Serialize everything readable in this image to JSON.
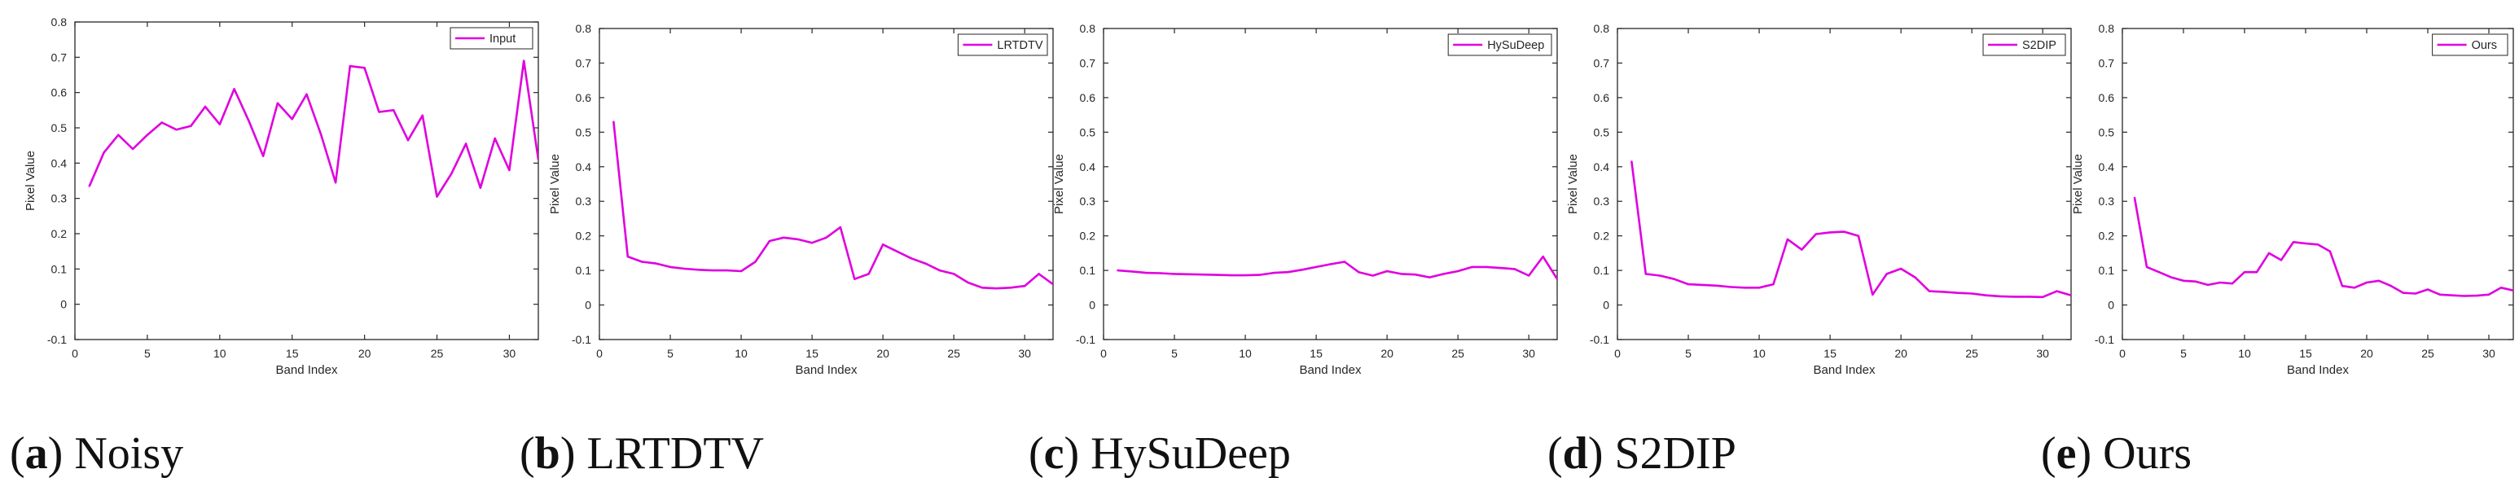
{
  "figure": {
    "captions": [
      {
        "letter": "(a)",
        "name": "Noisy"
      },
      {
        "letter": "(b)",
        "name": "LRTDTV"
      },
      {
        "letter": "(c)",
        "name": "HySuDeep"
      },
      {
        "letter": "(d)",
        "name": "S2DIP"
      },
      {
        "letter": "(e)",
        "name": "Ours"
      }
    ]
  },
  "chart_data": [
    {
      "type": "line",
      "xlabel": "Band Index",
      "ylabel": "Pixel Value",
      "xlim": [
        0,
        32
      ],
      "ylim": [
        -0.1,
        0.8
      ],
      "xticks": [
        0,
        5,
        10,
        15,
        20,
        25,
        30
      ],
      "yticks": [
        -0.1,
        0,
        0.1,
        0.2,
        0.3,
        0.4,
        0.5,
        0.6,
        0.7,
        0.8
      ],
      "legend_position": "top-right",
      "grid": false,
      "series": [
        {
          "name": "Input",
          "color": "#e000e0",
          "x": [
            1,
            2,
            3,
            4,
            5,
            6,
            7,
            8,
            9,
            10,
            11,
            12,
            13,
            14,
            15,
            16,
            17,
            18,
            19,
            20,
            21,
            22,
            23,
            24,
            25,
            26,
            27,
            28,
            29,
            30,
            31,
            32
          ],
          "values": [
            0.335,
            0.43,
            0.48,
            0.44,
            0.48,
            0.515,
            0.495,
            0.505,
            0.56,
            0.51,
            0.61,
            0.52,
            0.42,
            0.57,
            0.525,
            0.595,
            0.48,
            0.345,
            0.675,
            0.67,
            0.545,
            0.55,
            0.465,
            0.535,
            0.305,
            0.37,
            0.455,
            0.33,
            0.47,
            0.38,
            0.69,
            0.41
          ]
        }
      ]
    },
    {
      "type": "line",
      "xlabel": "Band Index",
      "ylabel": "Pixel Value",
      "xlim": [
        0,
        32
      ],
      "ylim": [
        -0.1,
        0.8
      ],
      "xticks": [
        0,
        5,
        10,
        15,
        20,
        25,
        30
      ],
      "yticks": [
        -0.1,
        0,
        0.1,
        0.2,
        0.3,
        0.4,
        0.5,
        0.6,
        0.7,
        0.8
      ],
      "legend_position": "top-right",
      "grid": false,
      "series": [
        {
          "name": "LRTDTV",
          "color": "#e000e0",
          "x": [
            1,
            2,
            3,
            4,
            5,
            6,
            7,
            8,
            9,
            10,
            11,
            12,
            13,
            14,
            15,
            16,
            17,
            18,
            19,
            20,
            21,
            22,
            23,
            24,
            25,
            26,
            27,
            28,
            29,
            30,
            31,
            32
          ],
          "values": [
            0.53,
            0.14,
            0.125,
            0.12,
            0.11,
            0.105,
            0.102,
            0.1,
            0.1,
            0.098,
            0.125,
            0.185,
            0.195,
            0.19,
            0.18,
            0.195,
            0.225,
            0.075,
            0.09,
            0.175,
            0.155,
            0.135,
            0.12,
            0.1,
            0.09,
            0.065,
            0.05,
            0.048,
            0.05,
            0.055,
            0.09,
            0.06
          ]
        }
      ]
    },
    {
      "type": "line",
      "xlabel": "Band Index",
      "ylabel": "Pixel Value",
      "xlim": [
        0,
        32
      ],
      "ylim": [
        -0.1,
        0.8
      ],
      "xticks": [
        0,
        5,
        10,
        15,
        20,
        25,
        30
      ],
      "yticks": [
        -0.1,
        0,
        0.1,
        0.2,
        0.3,
        0.4,
        0.5,
        0.6,
        0.7,
        0.8
      ],
      "legend_position": "top-right",
      "grid": false,
      "series": [
        {
          "name": "HySuDeep",
          "color": "#e000e0",
          "x": [
            1,
            2,
            3,
            4,
            5,
            6,
            7,
            8,
            9,
            10,
            11,
            12,
            13,
            14,
            15,
            16,
            17,
            18,
            19,
            20,
            21,
            22,
            23,
            24,
            25,
            26,
            27,
            28,
            29,
            30,
            31,
            32
          ],
          "values": [
            0.1,
            0.097,
            0.093,
            0.092,
            0.09,
            0.089,
            0.088,
            0.087,
            0.086,
            0.086,
            0.087,
            0.093,
            0.095,
            0.102,
            0.11,
            0.118,
            0.125,
            0.095,
            0.085,
            0.098,
            0.09,
            0.088,
            0.08,
            0.09,
            0.098,
            0.11,
            0.11,
            0.107,
            0.104,
            0.085,
            0.14,
            0.075
          ]
        }
      ]
    },
    {
      "type": "line",
      "xlabel": "Band Index",
      "ylabel": "Pixel Value",
      "xlim": [
        0,
        32
      ],
      "ylim": [
        -0.1,
        0.8
      ],
      "xticks": [
        0,
        5,
        10,
        15,
        20,
        25,
        30
      ],
      "yticks": [
        -0.1,
        0,
        0.1,
        0.2,
        0.3,
        0.4,
        0.5,
        0.6,
        0.7,
        0.8
      ],
      "legend_position": "top-right",
      "grid": false,
      "series": [
        {
          "name": "S2DIP",
          "color": "#e000e0",
          "x": [
            1,
            2,
            3,
            4,
            5,
            6,
            7,
            8,
            9,
            10,
            11,
            12,
            13,
            14,
            15,
            16,
            17,
            18,
            19,
            20,
            21,
            22,
            23,
            24,
            25,
            26,
            27,
            28,
            29,
            30,
            31,
            32
          ],
          "values": [
            0.415,
            0.09,
            0.085,
            0.075,
            0.06,
            0.058,
            0.056,
            0.052,
            0.05,
            0.05,
            0.06,
            0.19,
            0.16,
            0.205,
            0.21,
            0.212,
            0.2,
            0.03,
            0.09,
            0.105,
            0.08,
            0.04,
            0.038,
            0.035,
            0.033,
            0.028,
            0.025,
            0.024,
            0.024,
            0.023,
            0.04,
            0.028
          ]
        }
      ]
    },
    {
      "type": "line",
      "xlabel": "Band Index",
      "ylabel": "Pixel Value",
      "xlim": [
        0,
        32
      ],
      "ylim": [
        -0.1,
        0.8
      ],
      "xticks": [
        0,
        5,
        10,
        15,
        20,
        25,
        30
      ],
      "yticks": [
        -0.1,
        0,
        0.1,
        0.2,
        0.3,
        0.4,
        0.5,
        0.6,
        0.7,
        0.8
      ],
      "legend_position": "top-right",
      "grid": false,
      "series": [
        {
          "name": "Ours",
          "color": "#e000e0",
          "x": [
            1,
            2,
            3,
            4,
            5,
            6,
            7,
            8,
            9,
            10,
            11,
            12,
            13,
            14,
            15,
            16,
            17,
            18,
            19,
            20,
            21,
            22,
            23,
            24,
            25,
            26,
            27,
            28,
            29,
            30,
            31,
            32
          ],
          "values": [
            0.31,
            0.11,
            0.095,
            0.08,
            0.07,
            0.068,
            0.058,
            0.065,
            0.062,
            0.095,
            0.095,
            0.15,
            0.13,
            0.182,
            0.178,
            0.175,
            0.155,
            0.055,
            0.05,
            0.065,
            0.07,
            0.055,
            0.035,
            0.033,
            0.045,
            0.03,
            0.028,
            0.026,
            0.027,
            0.03,
            0.05,
            0.042
          ]
        }
      ]
    }
  ]
}
